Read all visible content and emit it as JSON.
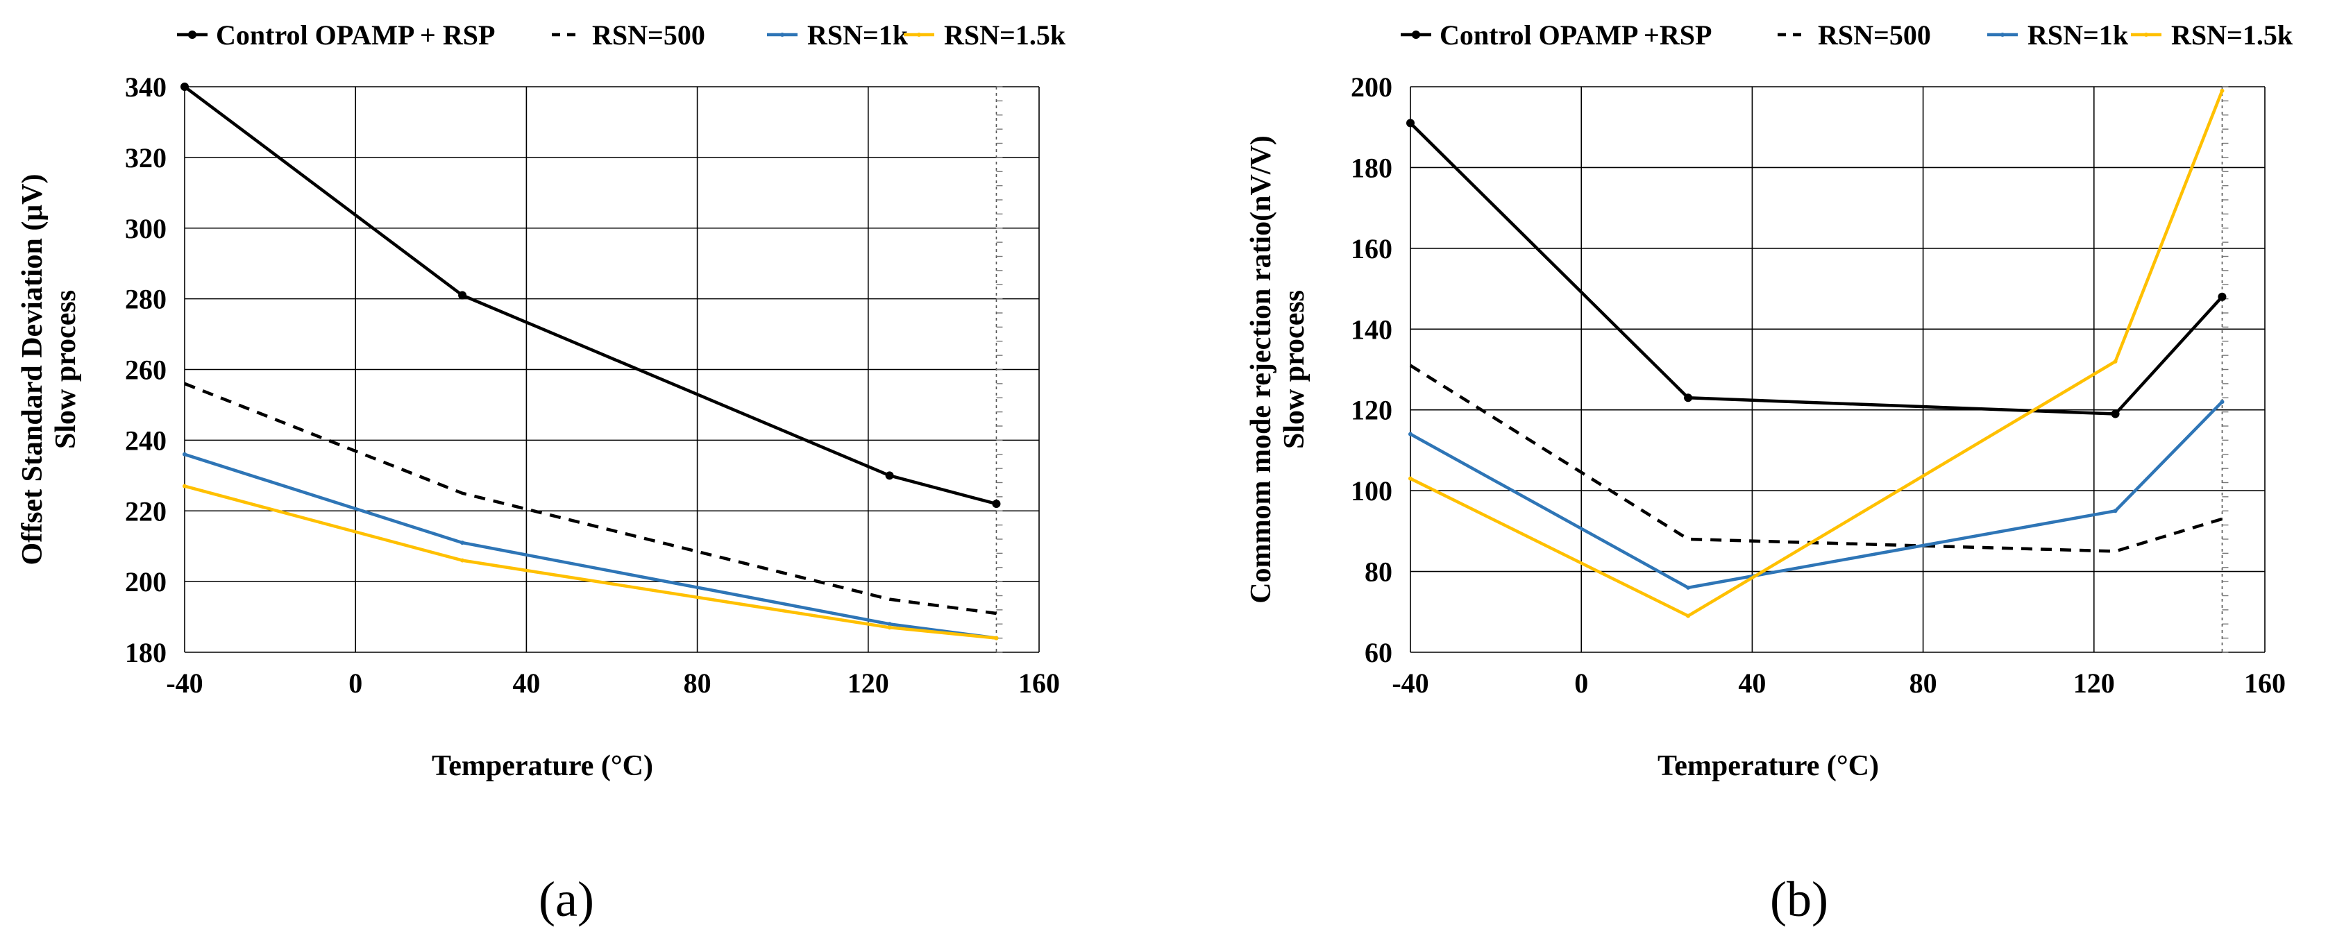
{
  "chart_data": [
    {
      "type": "line",
      "panel_label": "(a)",
      "xlabel": "Temperature (°C)",
      "ylabel": [
        "Offset Standard Deviation (μV)",
        "Slow process"
      ],
      "xlim": [
        -40,
        160
      ],
      "ylim": [
        180,
        340
      ],
      "xticks": [
        -40,
        0,
        40,
        80,
        120,
        160
      ],
      "yticks": [
        180,
        200,
        220,
        240,
        260,
        280,
        300,
        320,
        340
      ],
      "grid": true,
      "legend": "top",
      "x": [
        -40,
        25,
        125,
        150
      ],
      "series": [
        {
          "name": "Control OPAMP + RSP",
          "color": "#000000",
          "style": "solid-marker",
          "values": [
            340,
            281,
            230,
            222
          ]
        },
        {
          "name": "RSN=500",
          "color": "#000000",
          "style": "dashed",
          "values": [
            256,
            225,
            195,
            191
          ]
        },
        {
          "name": "RSN=1k",
          "color": "#2E75B6",
          "style": "solid",
          "values": [
            236,
            211,
            188,
            184
          ]
        },
        {
          "name": "RSN=1.5k",
          "color": "#FFC000",
          "style": "solid",
          "values": [
            227,
            206,
            187,
            184
          ]
        }
      ]
    },
    {
      "type": "line",
      "panel_label": "(b)",
      "xlabel": "Temperature (°C)",
      "ylabel": [
        "Commom mode rejection ratio(nV/V)",
        "Slow process"
      ],
      "xlim": [
        -40,
        160
      ],
      "ylim": [
        60,
        200
      ],
      "xticks": [
        -40,
        0,
        40,
        80,
        120,
        160
      ],
      "yticks": [
        60,
        80,
        100,
        120,
        140,
        160,
        180,
        200
      ],
      "grid": true,
      "legend": "top",
      "x": [
        -40,
        25,
        125,
        150
      ],
      "series": [
        {
          "name": "Control OPAMP +RSP",
          "color": "#000000",
          "style": "solid-marker",
          "values": [
            191,
            123,
            119,
            148
          ]
        },
        {
          "name": "RSN=500",
          "color": "#000000",
          "style": "dashed",
          "values": [
            131,
            88,
            85,
            93
          ]
        },
        {
          "name": "RSN=1k",
          "color": "#2E75B6",
          "style": "solid",
          "values": [
            114,
            76,
            95,
            122
          ]
        },
        {
          "name": "RSN=1.5k",
          "color": "#FFC000",
          "style": "solid",
          "values": [
            103,
            69,
            132,
            199
          ]
        }
      ]
    }
  ]
}
